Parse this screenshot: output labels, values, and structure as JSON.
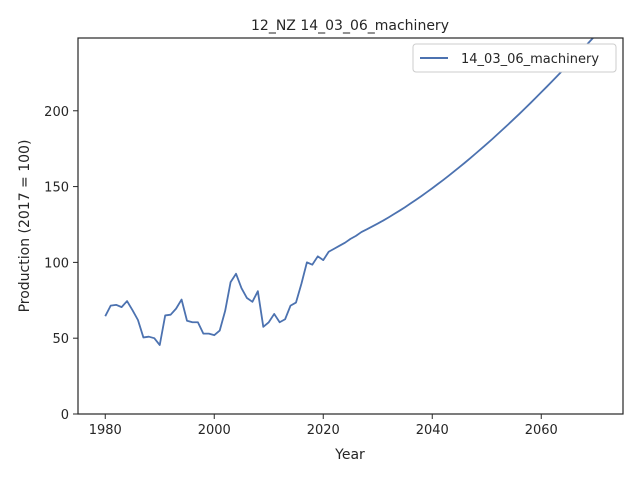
{
  "chart_data": {
    "type": "line",
    "title": "12_NZ 14_03_06_machinery",
    "xlabel": "Year",
    "ylabel": "Production (2017 = 100)",
    "xlim": [
      1975,
      2075
    ],
    "ylim": [
      0,
      248
    ],
    "xticks": [
      1980,
      2000,
      2020,
      2040,
      2060
    ],
    "yticks": [
      0,
      50,
      100,
      150,
      200
    ],
    "grid": false,
    "legend_position": "top-right",
    "series": [
      {
        "name": "14_03_06_machinery",
        "color": "#4c72b0",
        "x": [
          1980,
          1981,
          1982,
          1983,
          1984,
          1985,
          1986,
          1987,
          1988,
          1989,
          1990,
          1991,
          1992,
          1993,
          1994,
          1995,
          1996,
          1997,
          1998,
          1999,
          2000,
          2001,
          2002,
          2003,
          2004,
          2005,
          2006,
          2007,
          2008,
          2009,
          2010,
          2011,
          2012,
          2013,
          2014,
          2015,
          2016,
          2017,
          2018,
          2019,
          2020,
          2021,
          2022,
          2023,
          2024,
          2025,
          2026,
          2027,
          2028,
          2029,
          2030,
          2031,
          2032,
          2033,
          2034,
          2035,
          2036,
          2037,
          2038,
          2039,
          2040,
          2041,
          2042,
          2043,
          2044,
          2045,
          2046,
          2047,
          2048,
          2049,
          2050,
          2051,
          2052,
          2053,
          2054,
          2055,
          2056,
          2057,
          2058,
          2059,
          2060,
          2061,
          2062,
          2063,
          2064,
          2065,
          2066,
          2067,
          2068,
          2069,
          2070,
          2071
        ],
        "y": [
          64.5,
          71.5,
          72,
          70.5,
          74.5,
          68.5,
          62,
          50.5,
          51,
          50,
          45.5,
          65,
          65.5,
          69.5,
          75.5,
          61.5,
          60.5,
          60.5,
          53,
          53,
          52,
          55,
          68,
          87,
          92.5,
          83,
          76.5,
          74,
          81,
          57.5,
          60.5,
          66,
          60.5,
          62.5,
          71.5,
          73.5,
          86,
          100,
          98.5,
          104,
          101.5,
          107,
          109,
          111,
          113,
          115.5,
          117.5,
          120,
          121.8,
          123.7,
          125.6,
          127.6,
          129.7,
          131.9,
          134.1,
          136.4,
          138.8,
          141.2,
          143.7,
          146.3,
          148.9,
          151.6,
          154.3,
          157.1,
          160,
          162.9,
          165.8,
          168.8,
          171.9,
          175,
          178.1,
          181.3,
          184.6,
          187.9,
          191.2,
          194.6,
          198,
          201.5,
          205,
          208.6,
          212.2,
          215.8,
          219.5,
          223.2,
          226.9,
          230.7,
          234.5,
          238.3,
          242.2,
          246.1,
          250,
          254
        ]
      }
    ]
  }
}
